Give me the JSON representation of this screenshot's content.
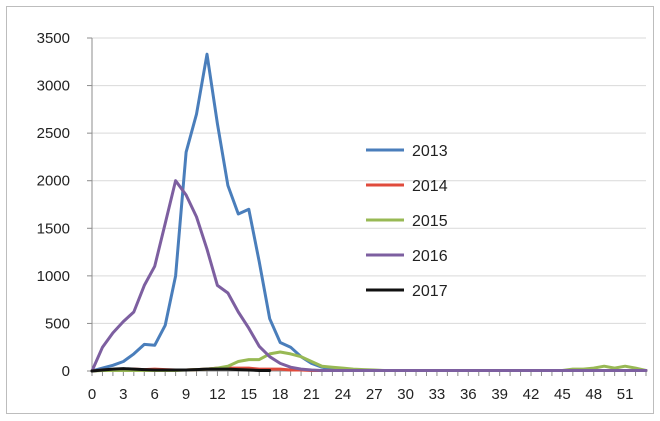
{
  "chart_data": {
    "type": "line",
    "title": "",
    "xlabel": "",
    "ylabel": "",
    "xlim": [
      0,
      53
    ],
    "ylim": [
      0,
      3500
    ],
    "x_ticks": [
      "0",
      "3",
      "6",
      "9",
      "12",
      "15",
      "18",
      "21",
      "24",
      "27",
      "30",
      "33",
      "36",
      "39",
      "42",
      "45",
      "48",
      "51"
    ],
    "y_ticks": [
      "0",
      "500",
      "1000",
      "1500",
      "2000",
      "2500",
      "3000",
      "3500"
    ],
    "grid": "horizontal",
    "legend_position": "right",
    "series": [
      {
        "name": "2013",
        "color": "#4a7ebb",
        "values": [
          0,
          30,
          60,
          100,
          180,
          280,
          270,
          480,
          1000,
          2300,
          2700,
          3330,
          2600,
          1950,
          1650,
          1700,
          1150,
          550,
          300,
          250,
          150,
          80,
          40,
          20,
          10,
          5,
          5,
          5,
          5,
          5,
          5,
          5,
          5,
          5,
          5,
          5,
          5,
          5,
          5,
          5,
          5,
          5,
          5,
          5,
          5,
          5,
          5,
          5,
          5,
          5,
          5,
          5,
          5,
          5
        ]
      },
      {
        "name": "2014",
        "color": "#e04b3c",
        "values": [
          0,
          10,
          15,
          20,
          20,
          15,
          20,
          15,
          10,
          10,
          15,
          20,
          30,
          30,
          30,
          30,
          20,
          20,
          20,
          10,
          10,
          5,
          5,
          5,
          5,
          5,
          5,
          5,
          5,
          5,
          5,
          5,
          5,
          5,
          5,
          5,
          5,
          5,
          5,
          5,
          5,
          5,
          5,
          5,
          5,
          5,
          5,
          5,
          5,
          5,
          5,
          5,
          5,
          5
        ]
      },
      {
        "name": "2015",
        "color": "#98b954",
        "values": [
          0,
          5,
          5,
          5,
          5,
          5,
          5,
          5,
          5,
          10,
          15,
          20,
          30,
          50,
          100,
          120,
          120,
          180,
          200,
          180,
          150,
          100,
          50,
          40,
          30,
          20,
          15,
          10,
          5,
          5,
          5,
          5,
          5,
          5,
          5,
          5,
          5,
          5,
          5,
          5,
          5,
          5,
          5,
          5,
          5,
          5,
          20,
          20,
          30,
          50,
          30,
          50,
          30,
          5
        ]
      },
      {
        "name": "2016",
        "color": "#7d5fa0",
        "values": [
          0,
          250,
          400,
          520,
          620,
          900,
          1100,
          1550,
          2000,
          1850,
          1620,
          1280,
          900,
          820,
          620,
          450,
          260,
          150,
          80,
          40,
          20,
          10,
          5,
          5,
          5,
          5,
          5,
          5,
          5,
          5,
          5,
          5,
          5,
          5,
          5,
          5,
          5,
          5,
          5,
          5,
          5,
          5,
          5,
          5,
          5,
          5,
          5,
          5,
          5,
          5,
          5,
          5,
          5,
          5
        ]
      },
      {
        "name": "2017",
        "color": "#111111",
        "values": [
          0,
          10,
          20,
          25,
          20,
          15,
          10,
          10,
          10,
          10,
          15,
          20,
          20,
          20,
          15,
          10,
          5,
          5
        ]
      }
    ]
  }
}
